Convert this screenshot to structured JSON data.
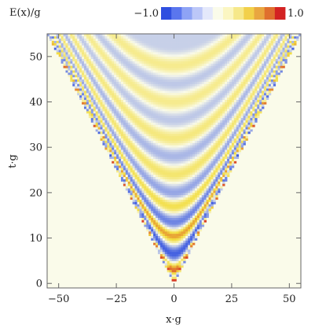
{
  "colors": {
    "negative": "#2f4fe0",
    "zero": "#fafbea",
    "positive_mid": "#f2dd3f",
    "positive": "#d32222",
    "frame": "#666666"
  },
  "chart_data": {
    "type": "heatmap",
    "title": "",
    "xlabel": "x·g",
    "ylabel": "t·g",
    "xlim": [
      -55,
      55
    ],
    "ylim": [
      -1,
      55
    ],
    "xticks": [
      -50,
      -25,
      0,
      25,
      50
    ],
    "yticks": [
      0,
      10,
      20,
      30,
      40,
      50
    ],
    "colorbar": {
      "label": "E(x)/g",
      "min_label": "−1.0",
      "max_label": "1.0",
      "min": -1.0,
      "max": 1.0,
      "placement": "top",
      "swatches": [
        "#2f4fe0",
        "#5a76ee",
        "#8ea3f5",
        "#bcc7f8",
        "#e4e8fb",
        "#fafbea",
        "#fbf6c2",
        "#f6e88a",
        "#f2d04a",
        "#e9a640",
        "#df6f2e",
        "#d32222"
      ]
    },
    "field_structure": {
      "region": "light cone |x| < t, field zero outside",
      "cone_slope": 1.0,
      "center_x": 0,
      "band_profile": [
        {
          "t": 0,
          "value": 1.0
        },
        {
          "t": 3,
          "value": 0.8
        },
        {
          "t": 6.5,
          "value": -0.9
        },
        {
          "t": 10.5,
          "value": 0.7
        },
        {
          "t": 13.5,
          "value": -0.7
        },
        {
          "t": 17,
          "value": 0.5
        },
        {
          "t": 20,
          "value": -0.5
        },
        {
          "t": 24,
          "value": 0.4
        },
        {
          "t": 28,
          "value": -0.4
        },
        {
          "t": 32,
          "value": 0.35
        },
        {
          "t": 36,
          "value": -0.3
        },
        {
          "t": 40,
          "value": 0.3
        },
        {
          "t": 44,
          "value": -0.3
        },
        {
          "t": 48,
          "value": 0.3
        },
        {
          "t": 52,
          "value": -0.25
        }
      ],
      "edge_note": "alternating red/blue oscillations along the cone edges |x| ≈ t"
    }
  }
}
